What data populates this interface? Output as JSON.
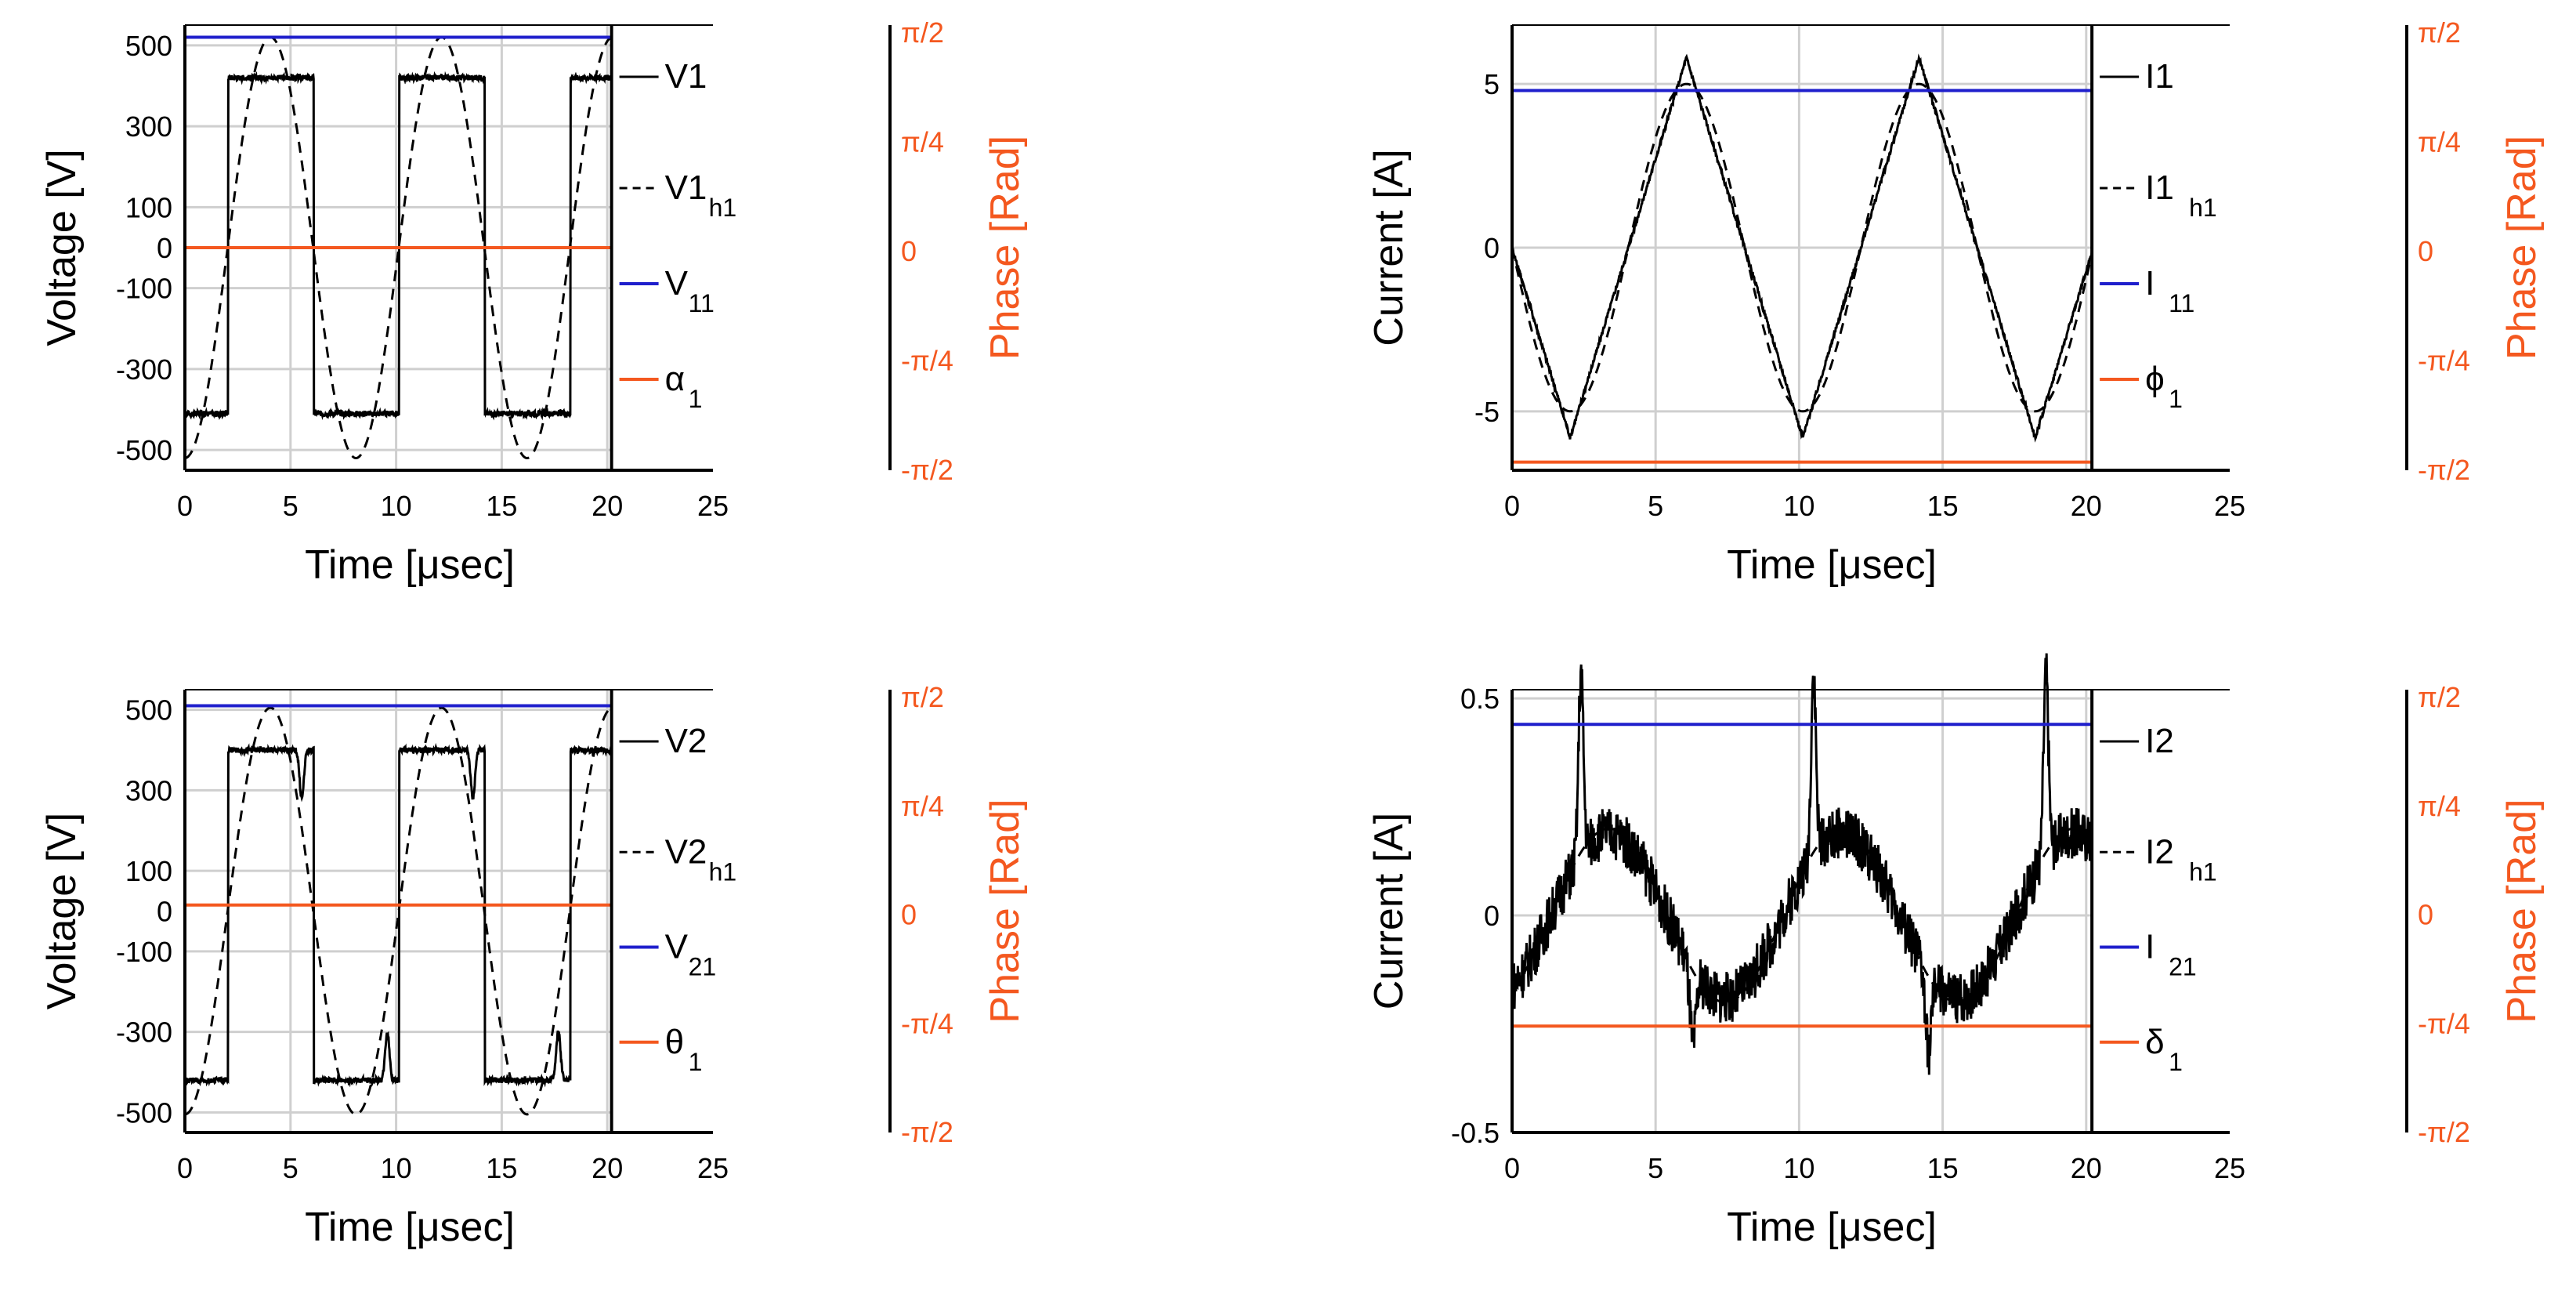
{
  "colors": {
    "phase": "#f4581f",
    "reference": "#1f1fcc",
    "signal": "#000000",
    "grid": "#cfcfcf"
  },
  "chart_data": [
    {
      "type": "line",
      "id": "v1",
      "xlabel": "Time [μsec]",
      "ylabel": "Voltage [V]",
      "phase_label": "Phase [Rad]",
      "xlim": [
        0,
        25
      ],
      "ylim": [
        -550,
        550
      ],
      "xticks": [
        0,
        5,
        10,
        15,
        20,
        25
      ],
      "xtick_labels": [
        "0",
        "5",
        "10",
        "15",
        "20",
        "25"
      ],
      "yticks": [
        500,
        300,
        100,
        0,
        -100,
        -300,
        -500
      ],
      "ytick_labels": [
        "500",
        "300",
        "100",
        "0",
        "-100",
        "-300",
        "-500"
      ],
      "ygrid": [
        500,
        300,
        100,
        -100,
        -300,
        -500
      ],
      "phase_ticks": [
        "π/2",
        "π/4",
        "0",
        "-π/4",
        "-π/2"
      ],
      "x_end": 20.2,
      "legend": [
        {
          "name": "V1",
          "sub": "",
          "style": "solid"
        },
        {
          "name": "V1",
          "sub": "h1",
          "style": "dashed"
        },
        {
          "name": "V",
          "sub": "11",
          "style": "reference"
        },
        {
          "name": "α",
          "sub": "1",
          "style": "phase"
        }
      ],
      "series": [
        {
          "name": "V1",
          "style": "solid",
          "shape": "square",
          "period": 8.1,
          "edge": 2.05,
          "high": 420,
          "low": -410,
          "ripple": 14,
          "dip_amp": 0
        },
        {
          "name": "V1 h1",
          "style": "dashed",
          "shape": "sine",
          "amplitude": 520,
          "period": 8.1,
          "offset": 0,
          "start_phase": -90
        },
        {
          "name": "V11",
          "style": "reference",
          "shape": "constant",
          "value": 520
        },
        {
          "name": "α1",
          "style": "phase",
          "shape": "constant",
          "value": 0
        }
      ]
    },
    {
      "type": "line",
      "id": "i1",
      "xlabel": "Time [μsec]",
      "ylabel": "Current [A]",
      "phase_label": "Phase [Rad]",
      "xlim": [
        0,
        25
      ],
      "ylim": [
        -6.8,
        6.8
      ],
      "xticks": [
        0,
        5,
        10,
        15,
        20,
        25
      ],
      "xtick_labels": [
        "0",
        "5",
        "10",
        "15",
        "20",
        "25"
      ],
      "yticks": [
        5,
        0,
        -5
      ],
      "ytick_labels": [
        "5",
        "0",
        "-5"
      ],
      "ygrid": [
        5,
        0,
        -5
      ],
      "phase_ticks": [
        "π/2",
        "π/4",
        "0",
        "-π/4",
        "-π/2"
      ],
      "x_end": 20.2,
      "legend": [
        {
          "name": "I1",
          "sub": "",
          "style": "solid"
        },
        {
          "name": "I1",
          "sub": "h1",
          "style": "dashed"
        },
        {
          "name": "I",
          "sub": "11",
          "style": "reference"
        },
        {
          "name": "ϕ",
          "sub": "1",
          "style": "phase"
        }
      ],
      "series": [
        {
          "name": "I1",
          "style": "solid",
          "shape": "triangle",
          "amplitude": 5.8,
          "period": 8.1,
          "offset": 0,
          "ripple": 0.15
        },
        {
          "name": "I1 h1",
          "style": "dashed",
          "shape": "sine",
          "amplitude": 5.0,
          "period": 8.1,
          "offset": 0,
          "start_phase": 180
        },
        {
          "name": "I11",
          "style": "reference",
          "shape": "constant",
          "value": 4.8
        },
        {
          "name": "ϕ1",
          "style": "phase",
          "shape": "constant",
          "value": -6.55
        }
      ]
    },
    {
      "type": "line",
      "id": "v2",
      "xlabel": "Time [μsec]",
      "ylabel": "Voltage [V]",
      "phase_label": "Phase [Rad]",
      "xlim": [
        0,
        25
      ],
      "ylim": [
        -550,
        550
      ],
      "xticks": [
        0,
        5,
        10,
        15,
        20,
        25
      ],
      "xtick_labels": [
        "0",
        "5",
        "10",
        "15",
        "20",
        "25"
      ],
      "yticks": [
        500,
        300,
        100,
        0,
        -100,
        -300,
        -500
      ],
      "ytick_labels": [
        "500",
        "300",
        "100",
        "0",
        "-100",
        "-300",
        "-500"
      ],
      "ygrid": [
        500,
        300,
        100,
        -100,
        -300,
        -500
      ],
      "phase_ticks": [
        "π/2",
        "π/4",
        "0",
        "-π/4",
        "-π/2"
      ],
      "x_end": 20.2,
      "legend": [
        {
          "name": "V2",
          "sub": "",
          "style": "solid"
        },
        {
          "name": "V2",
          "sub": "h1",
          "style": "dashed"
        },
        {
          "name": "V",
          "sub": "21",
          "style": "reference"
        },
        {
          "name": "θ",
          "sub": "1",
          "style": "phase"
        }
      ],
      "series": [
        {
          "name": "V2",
          "style": "solid",
          "shape": "square",
          "period": 8.1,
          "edge": 2.05,
          "high": 400,
          "low": -420,
          "ripple": 14,
          "dip_amp": 120
        },
        {
          "name": "V2 h1",
          "style": "dashed",
          "shape": "sine",
          "amplitude": 505,
          "period": 8.1,
          "offset": 0,
          "start_phase": -90
        },
        {
          "name": "V21",
          "style": "reference",
          "shape": "constant",
          "value": 510
        },
        {
          "name": "θ1",
          "style": "phase",
          "shape": "constant",
          "value": 15
        }
      ]
    },
    {
      "type": "line",
      "id": "i2",
      "xlabel": "Time [μsec]",
      "ylabel": "Current [A]",
      "phase_label": "Phase [Rad]",
      "xlim": [
        0,
        25
      ],
      "ylim": [
        -0.5,
        0.52
      ],
      "xticks": [
        0,
        5,
        10,
        15,
        20,
        25
      ],
      "xtick_labels": [
        "0",
        "5",
        "10",
        "15",
        "20",
        "25"
      ],
      "yticks": [
        0.5,
        0,
        -0.5
      ],
      "ytick_labels": [
        "0.5",
        "0",
        "-0.5"
      ],
      "ygrid": [
        0.5,
        0,
        -0.5
      ],
      "phase_ticks": [
        "π/2",
        "π/4",
        "0",
        "-π/4",
        "-π/2"
      ],
      "x_end": 20.2,
      "legend": [
        {
          "name": "I2",
          "sub": "",
          "style": "solid"
        },
        {
          "name": "I2",
          "sub": "h1",
          "style": "dashed"
        },
        {
          "name": "I",
          "sub": "21",
          "style": "reference"
        },
        {
          "name": "δ",
          "sub": "1",
          "style": "phase"
        }
      ],
      "series": [
        {
          "name": "I2",
          "style": "solid",
          "shape": "noisy",
          "period": 8.1,
          "amplitude": 0.2,
          "spike": 0.52,
          "noise": 0.06
        },
        {
          "name": "I2 h1",
          "style": "dashed",
          "shape": "sine",
          "amplitude": 0.2,
          "period": 8.1,
          "offset": 0,
          "start_phase": -60
        },
        {
          "name": "I21",
          "style": "reference",
          "shape": "constant",
          "value": 0.44
        },
        {
          "name": "δ1",
          "style": "phase",
          "shape": "constant",
          "value": -0.255
        }
      ]
    }
  ]
}
